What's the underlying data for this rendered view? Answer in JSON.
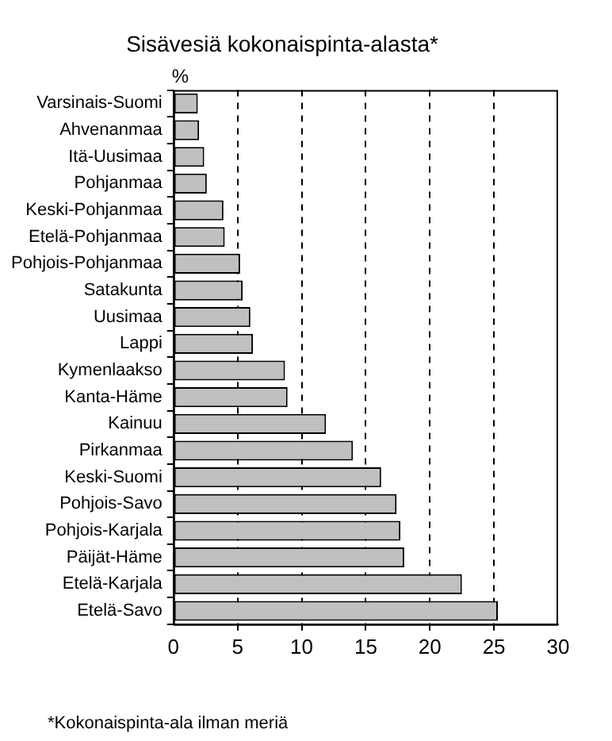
{
  "chart_data": {
    "type": "bar",
    "orientation": "horizontal",
    "title": "Sisävesiä kokonaispinta-alasta*",
    "xlabel": "%",
    "categories": [
      "Varsinais-Suomi",
      "Ahvenanmaa",
      "Itä-Uusimaa",
      "Pohjanmaa",
      "Keski-Pohjanmaa",
      "Etelä-Pohjanmaa",
      "Pohjois-Pohjanmaa",
      "Satakunta",
      "Uusimaa",
      "Lappi",
      "Kymenlaakso",
      "Kanta-Häme",
      "Kainuu",
      "Pirkanmaa",
      "Keski-Suomi",
      "Pohjois-Savo",
      "Pohjois-Karjala",
      "Päijät-Häme",
      "Etelä-Karjala",
      "Etelä-Savo"
    ],
    "values": [
      1.9,
      2.0,
      2.4,
      2.6,
      3.9,
      4.0,
      5.2,
      5.4,
      6.0,
      6.2,
      8.7,
      8.9,
      11.9,
      14.0,
      16.2,
      17.4,
      17.7,
      18.0,
      22.5,
      25.3
    ],
    "color": "#c0c0c0",
    "xlim": [
      0,
      30
    ],
    "xticks": [
      0,
      5,
      10,
      15,
      20,
      25,
      30
    ],
    "grid": "x",
    "legend": false,
    "annotations": [
      "*Kokonaispinta-ala ilman meriä"
    ]
  }
}
